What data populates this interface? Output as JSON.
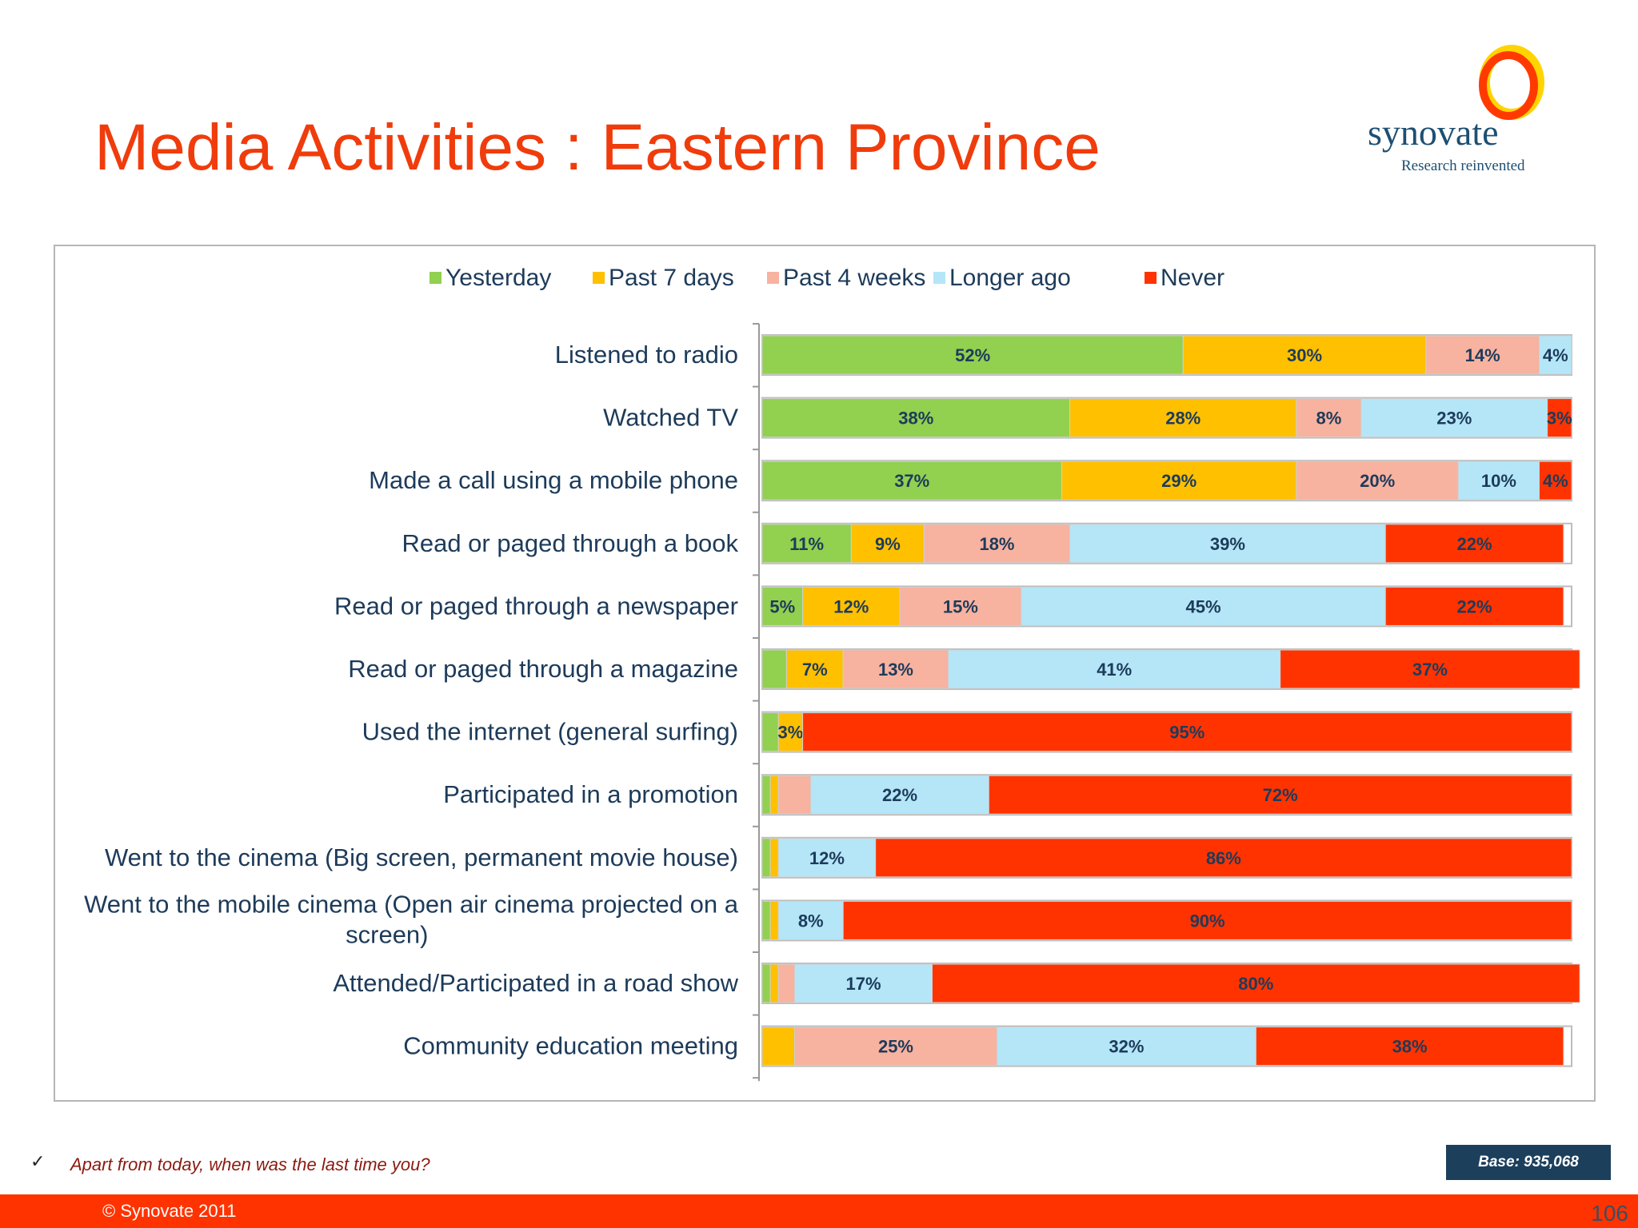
{
  "slide": {
    "title": "Media Activities : Eastern Province",
    "logo_text": "synovate",
    "logo_tagline": "Research reinvented",
    "footnote_mark": "✓",
    "footnote": "Apart from today, when was the last time you?",
    "base": "Base: 935,068",
    "copyright": "© Synovate 2011",
    "page_number": "106"
  },
  "colors": {
    "title": "#f03c0c",
    "footer": "#ff3300",
    "base_box": "#1c3f5c",
    "series": [
      "#92d050",
      "#ffc000",
      "#f8b2a0",
      "#b4e6f8",
      "#ff3300"
    ]
  },
  "chart_data": {
    "type": "bar",
    "orientation": "horizontal",
    "stacked": true,
    "legend_position": "top",
    "xlim": [
      0,
      100
    ],
    "categories": [
      "Listened to radio",
      "Watched TV",
      "Made a call using a mobile phone",
      "Read or paged through a book",
      "Read or paged through a newspaper",
      "Read or paged through a magazine",
      "Used the internet (general surfing)",
      "Participated in a promotion",
      "Went to the cinema (Big screen, permanent movie house)",
      "Went to the mobile cinema (Open air cinema projected on a screen)",
      "Attended/Participated in a road show",
      "Community education meeting"
    ],
    "series": [
      {
        "name": "Yesterday",
        "values": [
          52,
          38,
          37,
          11,
          5,
          3,
          2,
          1,
          1,
          1,
          1,
          0
        ]
      },
      {
        "name": "Past 7 days",
        "values": [
          30,
          28,
          29,
          9,
          12,
          7,
          3,
          1,
          1,
          1,
          1,
          4
        ]
      },
      {
        "name": "Past 4 weeks",
        "values": [
          14,
          8,
          20,
          18,
          15,
          13,
          0,
          4,
          0,
          0,
          2,
          25
        ]
      },
      {
        "name": "Longer ago",
        "values": [
          4,
          23,
          10,
          39,
          45,
          41,
          0,
          22,
          12,
          8,
          17,
          32
        ]
      },
      {
        "name": "Never",
        "values": [
          0,
          3,
          4,
          22,
          22,
          37,
          95,
          72,
          86,
          90,
          80,
          38
        ]
      }
    ],
    "data_labels": [
      [
        "52%",
        "30%",
        "14%",
        "4%",
        ""
      ],
      [
        "38%",
        "28%",
        "8%",
        "23%",
        "3%"
      ],
      [
        "37%",
        "29%",
        "20%",
        "10%",
        "4%"
      ],
      [
        "11%",
        "9%",
        "18%",
        "39%",
        "22%"
      ],
      [
        "5%",
        "12%",
        "15%",
        "45%",
        "22%"
      ],
      [
        "",
        "7%",
        "13%",
        "41%",
        "37%"
      ],
      [
        "",
        "3%",
        "",
        "",
        "95%"
      ],
      [
        "",
        "",
        "",
        "22%",
        "72%"
      ],
      [
        "",
        "",
        "",
        "12%",
        "86%"
      ],
      [
        "",
        "",
        "",
        "8%",
        "90%"
      ],
      [
        "",
        "",
        "",
        "17%",
        "80%"
      ],
      [
        "",
        "",
        "25%",
        "32%",
        "38%"
      ]
    ]
  }
}
